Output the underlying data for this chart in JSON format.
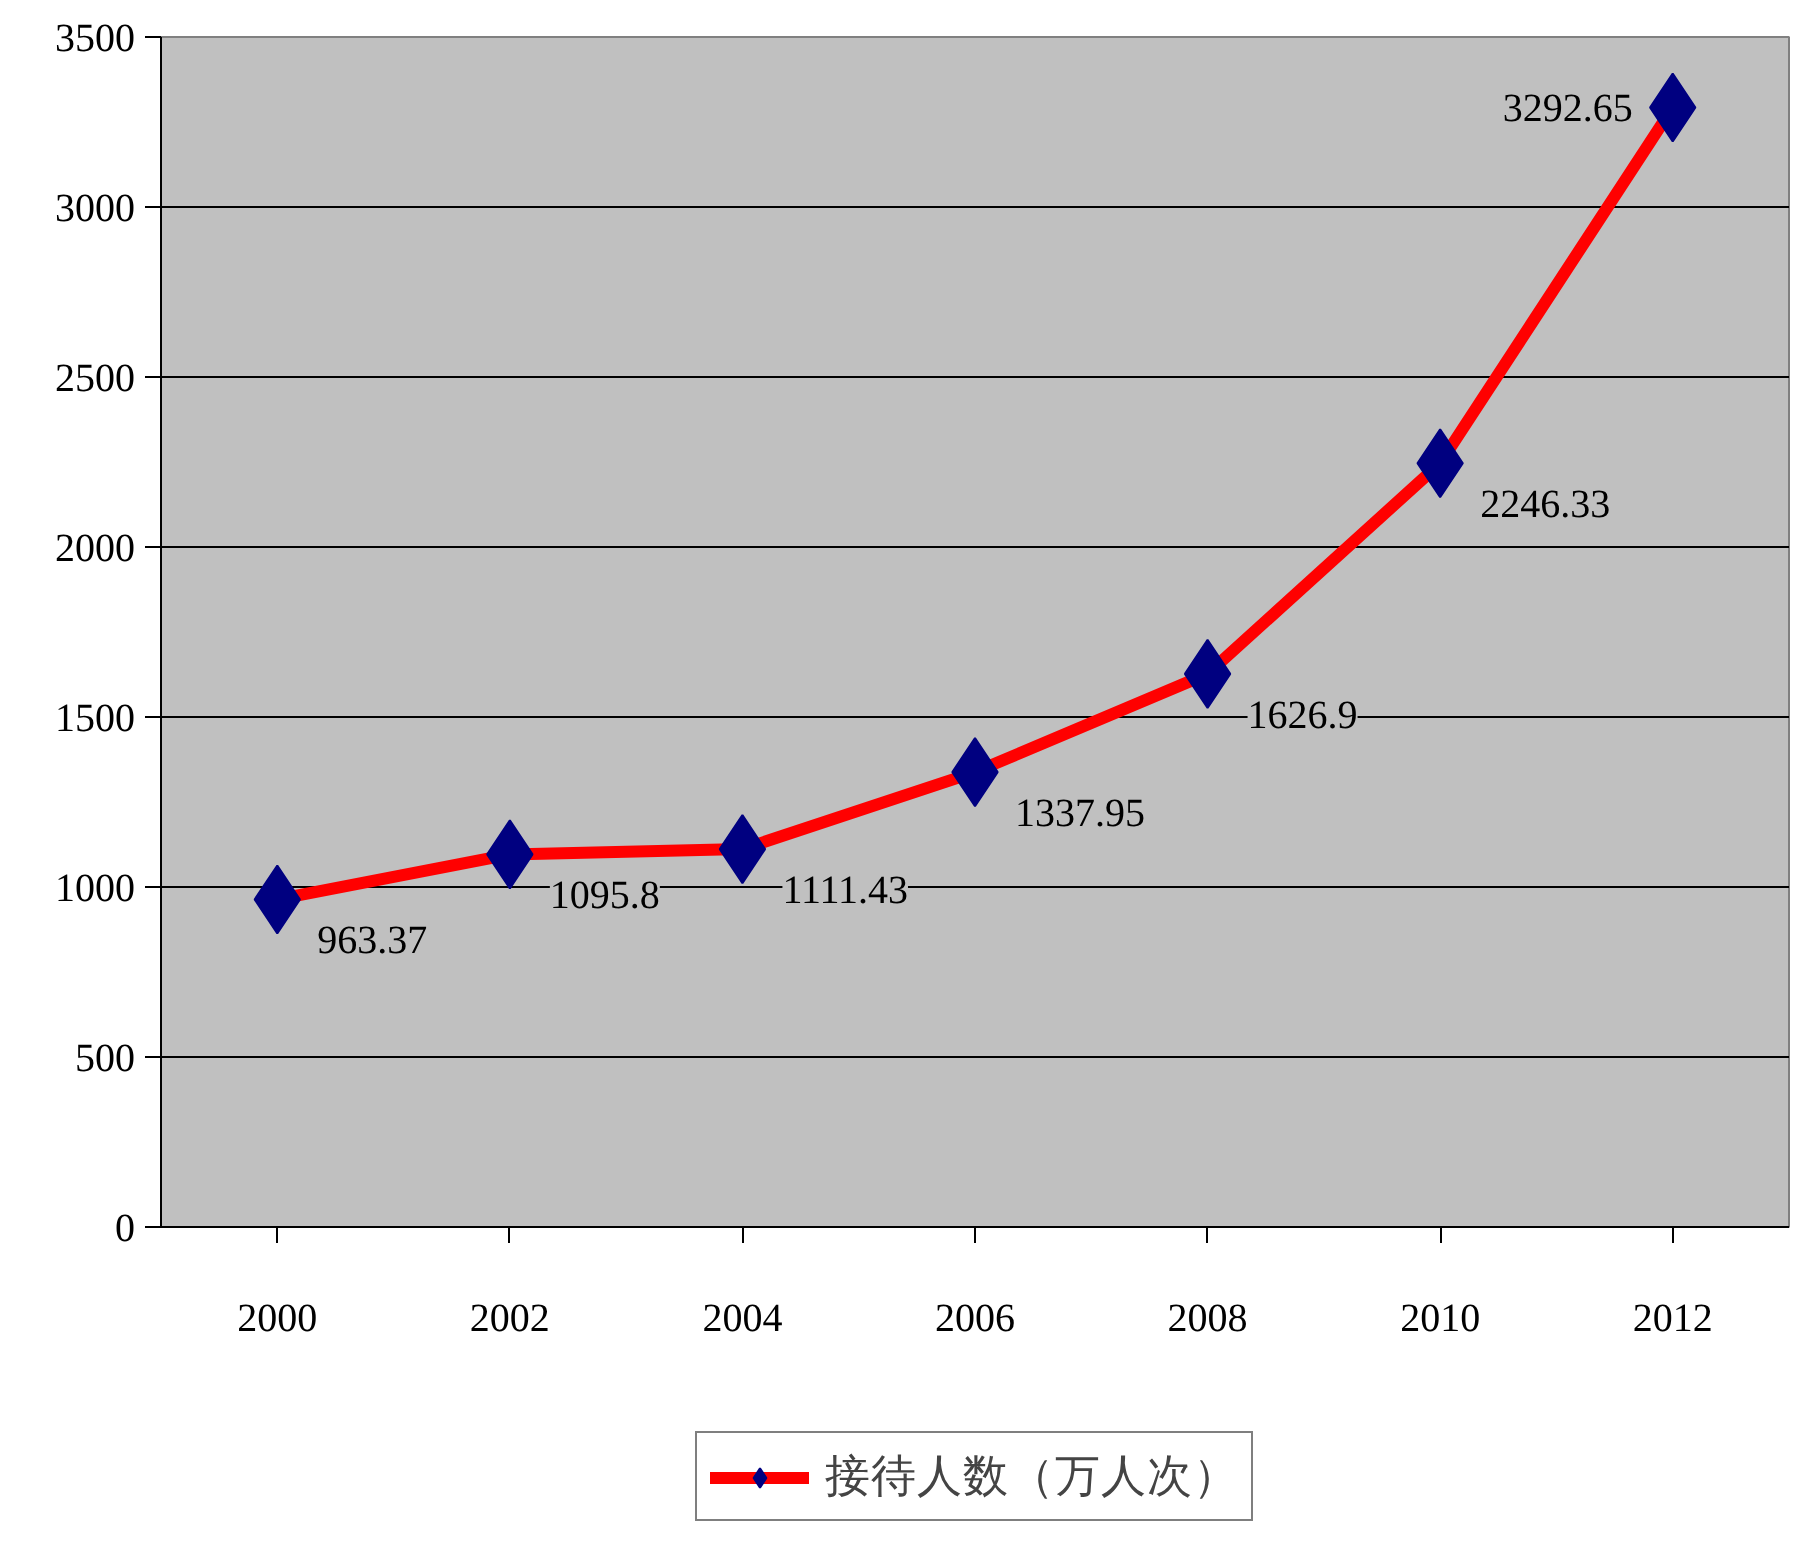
{
  "chart_data": {
    "type": "line",
    "categories": [
      "2000",
      "2002",
      "2004",
      "2006",
      "2008",
      "2010",
      "2012"
    ],
    "series": [
      {
        "name": "接待人数（万人次）",
        "color": "#ff0000",
        "colors": [
          "#000080",
          "#000080",
          "#000080",
          "#000080",
          "#000080",
          "#000080",
          "#000080"
        ],
        "values": [
          963.37,
          1095.8,
          1111.43,
          1337.95,
          1626.9,
          2246.33,
          3292.65
        ]
      }
    ],
    "ylim": [
      0,
      3500
    ],
    "yticks": [
      0,
      500,
      1000,
      1500,
      2000,
      2500,
      3000,
      3500
    ],
    "grid": "y",
    "legend": "bottom",
    "marker": "diamond",
    "data_labels": true
  }
}
